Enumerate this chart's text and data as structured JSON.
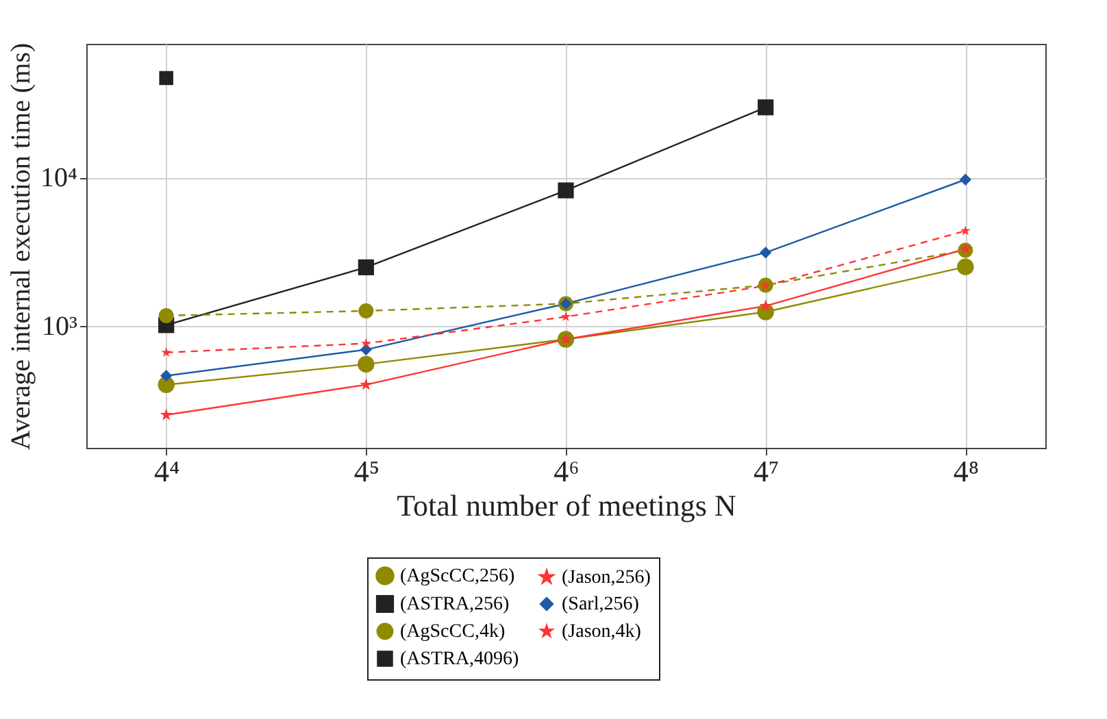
{
  "chart_data": {
    "type": "line",
    "xlabel": "Total number of meetings N",
    "ylabel": "Average internal execution time (ms)",
    "categories": [
      "4⁴",
      "4⁵",
      "4⁶",
      "4⁷",
      "4⁸"
    ],
    "ylim": [
      150,
      80000
    ],
    "log": "y",
    "grid": true,
    "legend": "bottom",
    "yticks": [
      {
        "value": 1000,
        "label": "10³"
      },
      {
        "value": 10000,
        "label": "10⁴"
      }
    ],
    "series": [
      {
        "name": "(AgScCC,256)",
        "color": "#8f8a00",
        "marker": "circle",
        "line_style": "solid",
        "values": [
          400,
          550,
          810,
          1240,
          2500
        ]
      },
      {
        "name": "(ASTRA,256)",
        "color": "#222222",
        "marker": "square",
        "line_style": "solid",
        "values": [
          1010,
          2480,
          8200,
          29800,
          null
        ]
      },
      {
        "name": "(AgScCC,4k)",
        "color": "#8f8a00",
        "marker": "circle",
        "line_style": "dashed",
        "values": [
          1170,
          1260,
          1410,
          1880,
          3230
        ]
      },
      {
        "name": "(ASTRA,4096)",
        "color": "#222222",
        "marker": "square",
        "line_style": "dashed",
        "values": [
          47000,
          null,
          null,
          null,
          null
        ]
      },
      {
        "name": "(Jason,256)",
        "color": "#ff3333",
        "marker": "star",
        "line_style": "solid",
        "values": [
          250,
          400,
          810,
          1360,
          3300
        ]
      },
      {
        "name": "(Sarl,256)",
        "color": "#1f5aa6",
        "marker": "diamond",
        "line_style": "solid",
        "values": [
          460,
          690,
          1410,
          3120,
          9700
        ]
      },
      {
        "name": "(Jason,4k)",
        "color": "#ff3333",
        "marker": "star",
        "line_style": "dashed",
        "values": [
          660,
          760,
          1150,
          1860,
          4370
        ]
      }
    ]
  }
}
